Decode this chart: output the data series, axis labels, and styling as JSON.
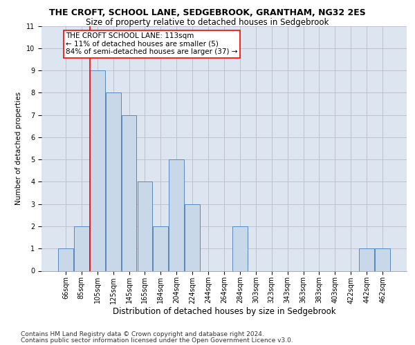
{
  "title": "THE CROFT, SCHOOL LANE, SEDGEBROOK, GRANTHAM, NG32 2ES",
  "subtitle": "Size of property relative to detached houses in Sedgebrook",
  "xlabel": "Distribution of detached houses by size in Sedgebrook",
  "ylabel": "Number of detached properties",
  "categories": [
    "66sqm",
    "85sqm",
    "105sqm",
    "125sqm",
    "145sqm",
    "165sqm",
    "184sqm",
    "204sqm",
    "224sqm",
    "244sqm",
    "264sqm",
    "284sqm",
    "303sqm",
    "323sqm",
    "343sqm",
    "363sqm",
    "383sqm",
    "403sqm",
    "422sqm",
    "442sqm",
    "462sqm"
  ],
  "values": [
    1,
    2,
    9,
    8,
    7,
    4,
    2,
    5,
    3,
    0,
    0,
    2,
    0,
    0,
    0,
    0,
    0,
    0,
    0,
    1,
    1
  ],
  "bar_color": "#c8d8e8",
  "bar_edge_color": "#5588bb",
  "bar_linewidth": 0.7,
  "red_line_index": 2,
  "annotation_text": "THE CROFT SCHOOL LANE: 113sqm\n← 11% of detached houses are smaller (5)\n84% of semi-detached houses are larger (37) →",
  "annotation_box_color": "white",
  "annotation_box_edge_color": "red",
  "ylim": [
    0,
    11
  ],
  "yticks": [
    0,
    1,
    2,
    3,
    4,
    5,
    6,
    7,
    8,
    9,
    10,
    11
  ],
  "grid_color": "#bbbbcc",
  "background_color": "#dde6f0",
  "footer1": "Contains HM Land Registry data © Crown copyright and database right 2024.",
  "footer2": "Contains public sector information licensed under the Open Government Licence v3.0.",
  "title_fontsize": 9,
  "subtitle_fontsize": 8.5,
  "xlabel_fontsize": 8.5,
  "ylabel_fontsize": 7.5,
  "tick_fontsize": 7,
  "footer_fontsize": 6.5,
  "annotation_fontsize": 7.5
}
